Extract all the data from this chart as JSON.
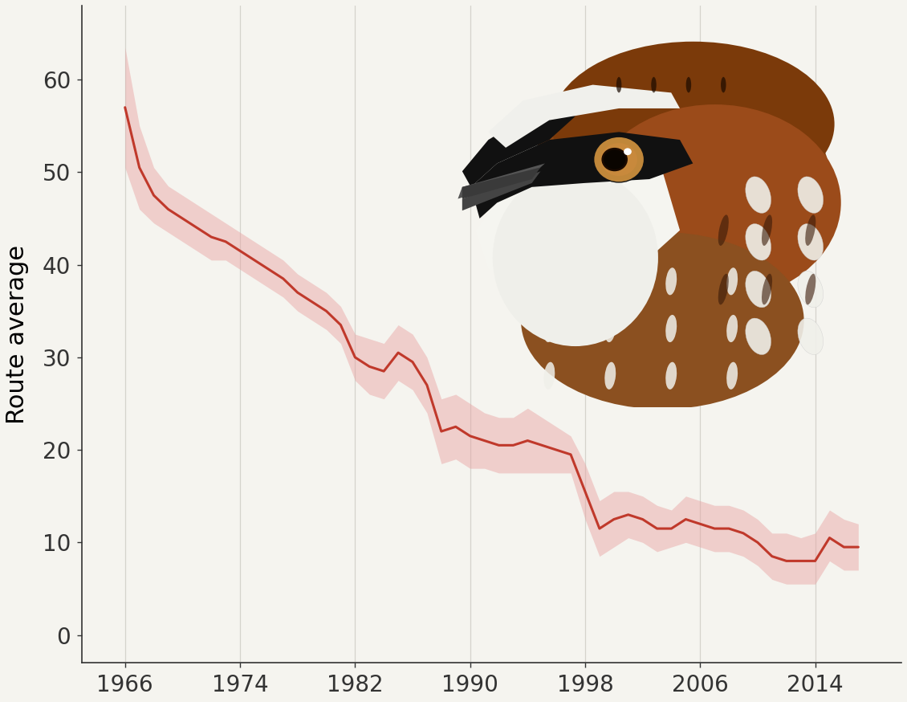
{
  "years": [
    1966,
    1967,
    1968,
    1969,
    1970,
    1971,
    1972,
    1973,
    1974,
    1975,
    1976,
    1977,
    1978,
    1979,
    1980,
    1981,
    1982,
    1983,
    1984,
    1985,
    1986,
    1987,
    1988,
    1989,
    1990,
    1991,
    1992,
    1993,
    1994,
    1995,
    1996,
    1997,
    1998,
    1999,
    2000,
    2001,
    2002,
    2003,
    2004,
    2005,
    2006,
    2007,
    2008,
    2009,
    2010,
    2011,
    2012,
    2013,
    2014,
    2015,
    2016,
    2017
  ],
  "values": [
    57.0,
    50.5,
    47.5,
    46.0,
    45.0,
    44.0,
    43.0,
    42.5,
    41.5,
    40.5,
    39.5,
    38.5,
    37.0,
    36.0,
    35.0,
    33.5,
    30.0,
    29.0,
    28.5,
    30.5,
    29.5,
    27.0,
    22.0,
    22.5,
    21.5,
    21.0,
    20.5,
    20.5,
    21.0,
    20.5,
    20.0,
    19.5,
    15.5,
    11.5,
    12.5,
    13.0,
    12.5,
    11.5,
    11.5,
    12.5,
    12.0,
    11.5,
    11.5,
    11.0,
    10.0,
    8.5,
    8.0,
    8.0,
    8.0,
    10.5,
    9.5,
    9.5
  ],
  "ci_upper": [
    63.5,
    55.0,
    50.5,
    48.5,
    47.5,
    46.5,
    45.5,
    44.5,
    43.5,
    42.5,
    41.5,
    40.5,
    39.0,
    38.0,
    37.0,
    35.5,
    32.5,
    32.0,
    31.5,
    33.5,
    32.5,
    30.0,
    25.5,
    26.0,
    25.0,
    24.0,
    23.5,
    23.5,
    24.5,
    23.5,
    22.5,
    21.5,
    18.5,
    14.5,
    15.5,
    15.5,
    15.0,
    14.0,
    13.5,
    15.0,
    14.5,
    14.0,
    14.0,
    13.5,
    12.5,
    11.0,
    11.0,
    10.5,
    11.0,
    13.5,
    12.5,
    12.0
  ],
  "ci_lower": [
    50.5,
    46.0,
    44.5,
    43.5,
    42.5,
    41.5,
    40.5,
    40.5,
    39.5,
    38.5,
    37.5,
    36.5,
    35.0,
    34.0,
    33.0,
    31.5,
    27.5,
    26.0,
    25.5,
    27.5,
    26.5,
    24.0,
    18.5,
    19.0,
    18.0,
    18.0,
    17.5,
    17.5,
    17.5,
    17.5,
    17.5,
    17.5,
    12.5,
    8.5,
    9.5,
    10.5,
    10.0,
    9.0,
    9.5,
    10.0,
    9.5,
    9.0,
    9.0,
    8.5,
    7.5,
    6.0,
    5.5,
    5.5,
    5.5,
    8.0,
    7.0,
    7.0
  ],
  "line_color": "#c0392b",
  "fill_color": "#e8a0a0",
  "background_color": "#f5f4ef",
  "ylabel": "Route average",
  "yticks": [
    0,
    10,
    20,
    30,
    40,
    50,
    60
  ],
  "xticks": [
    1966,
    1974,
    1982,
    1990,
    1998,
    2006,
    2014
  ],
  "ylim": [
    -3,
    68
  ],
  "xlim": [
    1963,
    2020
  ],
  "grid_color": "#d5d3cc",
  "ylabel_fontsize": 22,
  "tick_fontsize": 20,
  "line_width": 2.2,
  "fill_alpha": 0.45
}
